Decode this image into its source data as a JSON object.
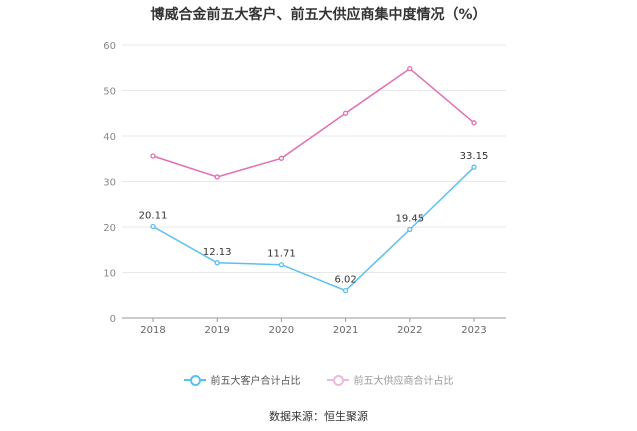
{
  "chart_data": {
    "type": "line",
    "title": "博威合金前五大客户、前五大供应商集中度情况（%）",
    "categories": [
      "2018",
      "2019",
      "2020",
      "2021",
      "2022",
      "2023"
    ],
    "ylim": [
      0,
      60
    ],
    "yticks": [
      "0",
      "10",
      "20",
      "30",
      "40",
      "50",
      "60"
    ],
    "grid": true,
    "legend_position": "bottom",
    "series": [
      {
        "name": "前五大客户合计占比",
        "color": "#5bc0f0",
        "values": [
          20.11,
          12.13,
          11.71,
          6.02,
          19.45,
          33.15
        ],
        "labels": [
          "20.11",
          "12.13",
          "11.71",
          "6.02",
          "19.45",
          "33.15"
        ]
      },
      {
        "name": "前五大供应商合计占比",
        "color": "#e06fb5",
        "values": [
          35.6,
          31.0,
          35.1,
          45.0,
          54.8,
          42.9
        ]
      }
    ],
    "source": "数据来源：恒生聚源"
  }
}
